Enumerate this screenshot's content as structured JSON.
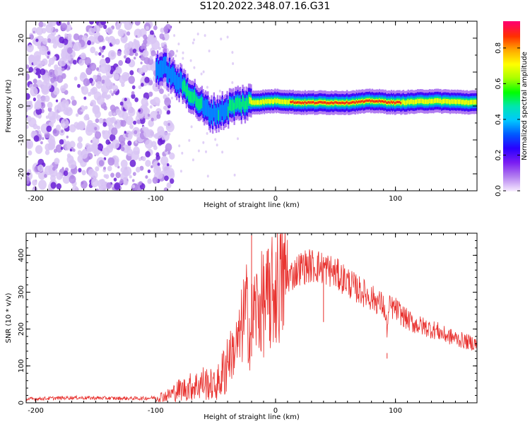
{
  "title": "S120.2022.348.07.16.G31",
  "colors": {
    "trace": "#e8312e",
    "axis": "#000000",
    "scatter_light": "#d9c6f5",
    "scatter_mid": "#b48ae8",
    "scatter_dark": "#6a1fd6"
  },
  "chart_data": [
    {
      "type": "heatmap",
      "title": "S120.2022.348.07.16.G31",
      "xlabel": "Height of straight line (km)",
      "ylabel": "Frequency (Hz)",
      "xlim": [
        -208,
        168
      ],
      "ylim": [
        -25,
        25
      ],
      "x_ticks": [
        -200,
        -100,
        0,
        100
      ],
      "y_ticks": [
        -20,
        -10,
        0,
        10,
        20
      ],
      "colorbar": {
        "label": "Normalized spectral amplitude",
        "range": [
          0.0,
          0.95
        ],
        "ticks": [
          0.0,
          0.2,
          0.4,
          0.6,
          0.8
        ],
        "colormap": [
          "#f4e6ff",
          "#b27df0",
          "#7a1cf2",
          "#2a00ff",
          "#0058ff",
          "#00c8ff",
          "#00e6b0",
          "#00ff00",
          "#a8ff00",
          "#ffff00",
          "#ffaa00",
          "#ff3000",
          "#ff006a"
        ]
      },
      "ridge": {
        "x": [
          -100,
          -92,
          -85,
          -78,
          -70,
          -62,
          -55,
          -48,
          -42,
          -36,
          -30,
          -22,
          -12,
          0,
          20,
          40,
          60,
          80,
          100,
          130,
          168
        ],
        "y": [
          11,
          11,
          8,
          6,
          3,
          0,
          -2,
          -2,
          -1,
          0,
          0.5,
          1,
          1.2,
          1.5,
          1,
          1,
          1,
          1.5,
          1,
          1.5,
          1
        ],
        "amplitude": [
          0.35,
          0.3,
          0.4,
          0.45,
          0.5,
          0.45,
          0.4,
          0.45,
          0.4,
          0.55,
          0.6,
          0.65,
          0.75,
          0.8,
          0.85,
          0.9,
          0.88,
          0.85,
          0.85,
          0.7,
          0.7
        ]
      },
      "noise_region": {
        "x": [
          -208,
          -90
        ],
        "y": [
          -25,
          25
        ],
        "amplitude": [
          0.0,
          0.12
        ]
      }
    },
    {
      "type": "line",
      "xlabel": "Height of straight line (km)",
      "ylabel": "SNR (10 * v/v)",
      "xlim": [
        -208,
        168
      ],
      "ylim": [
        0,
        460
      ],
      "x_ticks": [
        -200,
        -100,
        0,
        100
      ],
      "y_ticks": [
        0,
        100,
        200,
        300,
        400
      ],
      "series": [
        {
          "x": [
            -208,
            -190,
            -170,
            -150,
            -130,
            -110,
            -100,
            -95,
            -90,
            -85,
            -80,
            -75,
            -70,
            -65,
            -60,
            -55,
            -50,
            -45,
            -40,
            -35,
            -30,
            -27,
            -24,
            -21,
            -19,
            -17,
            -14,
            -10,
            -5,
            0,
            5,
            10,
            15,
            20,
            25,
            30,
            35,
            40,
            45,
            50,
            55,
            60,
            65,
            70,
            75,
            80,
            85,
            90,
            93,
            95,
            100,
            105,
            110,
            115,
            120,
            125,
            130,
            135,
            140,
            145,
            150,
            155,
            160,
            168
          ],
          "y": [
            10,
            12,
            14,
            13,
            12,
            12,
            14,
            17,
            20,
            28,
            36,
            38,
            45,
            48,
            55,
            50,
            45,
            70,
            120,
            140,
            170,
            230,
            250,
            180,
            240,
            250,
            260,
            270,
            280,
            310,
            330,
            340,
            350,
            365,
            370,
            372,
            370,
            365,
            360,
            350,
            340,
            330,
            315,
            305,
            295,
            285,
            275,
            265,
            200,
            260,
            255,
            240,
            225,
            215,
            210,
            205,
            200,
            195,
            185,
            180,
            175,
            170,
            165,
            160
          ],
          "spikes": [
            {
              "x": -20,
              "y": 455
            },
            {
              "x": -5,
              "y": 380
            },
            {
              "x": 93,
              "y": 135
            },
            {
              "x": 40,
              "y": 395
            }
          ]
        }
      ]
    }
  ]
}
